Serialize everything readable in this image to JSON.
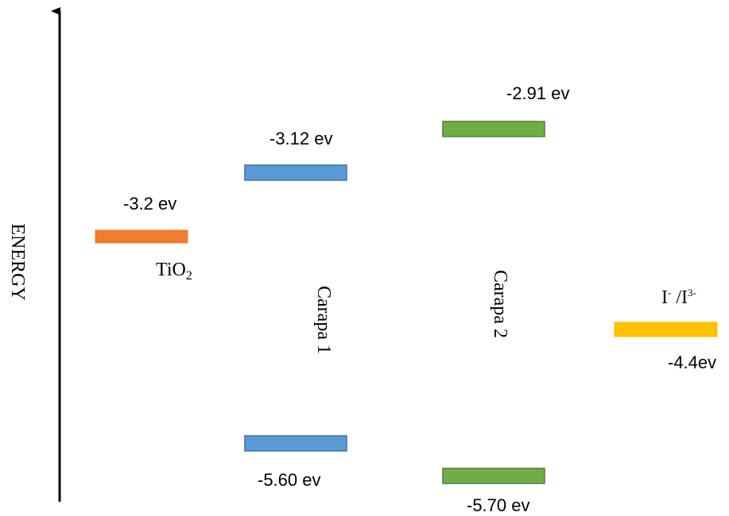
{
  "axis": {
    "label": "ENERGY"
  },
  "levels": {
    "tio2": {
      "label_main": "TiO",
      "label_sub": "2",
      "value": "-3.2 ev",
      "color": "#ED7D31"
    },
    "carapa1_lumo": {
      "value": "-3.12 ev",
      "color": "#5B9BD5"
    },
    "carapa1_homo": {
      "value": "-5.60 ev",
      "color": "#5B9BD5"
    },
    "carapa1": {
      "label": "Carapa 1"
    },
    "carapa2_lumo": {
      "value": "-2.91 ev",
      "color": "#70AD47"
    },
    "carapa2_homo": {
      "value": "-5.70 ev",
      "color": "#70AD47"
    },
    "carapa2": {
      "label": "Carapa 2"
    },
    "redox": {
      "label_a": "I",
      "label_a_sup": "-",
      "label_sep": " /I",
      "label_b_sup": "3-",
      "value": "-4.4ev",
      "color": "#FFC000"
    }
  }
}
